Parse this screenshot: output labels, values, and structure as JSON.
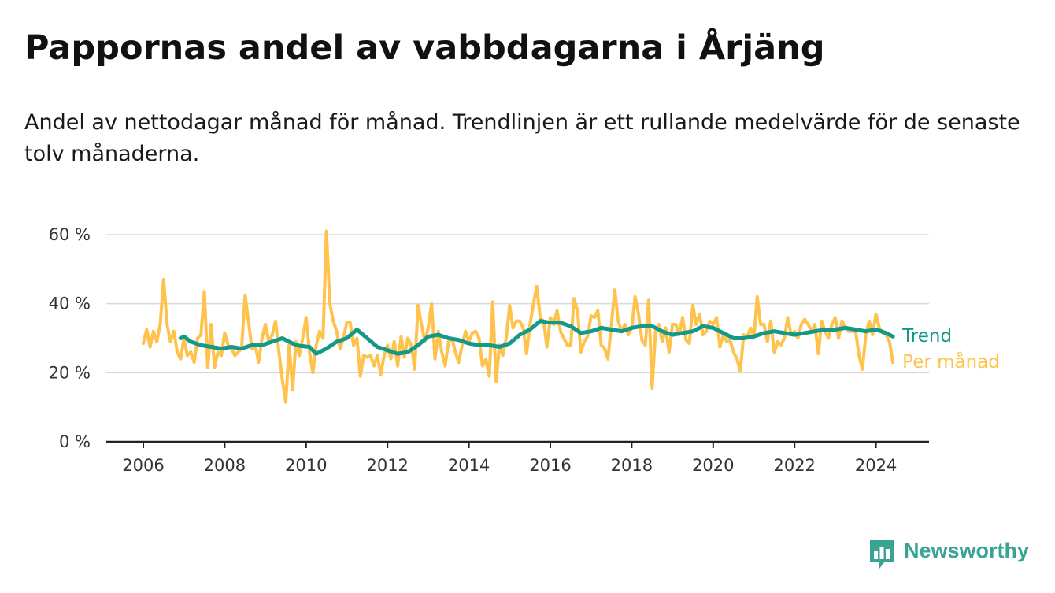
{
  "title": "Pappornas andel av vabbdagarna i Årjäng",
  "subtitle": "Andel av nettodagar månad för månad. Trendlinjen är ett rullande medelvärde för de senaste tolv månaderna.",
  "brand": {
    "name": "Newsworthy",
    "color": "#3aa494",
    "icon": "bar-chart-speech-bubble-icon"
  },
  "chart_data": {
    "type": "line",
    "grid": true,
    "ylim": [
      0,
      60
    ],
    "xlim": [
      "2006-01",
      "2024-12"
    ],
    "y_ticks": [
      {
        "value": 0,
        "label": "0 %"
      },
      {
        "value": 20,
        "label": "20 %"
      },
      {
        "value": 40,
        "label": "40 %"
      },
      {
        "value": 60,
        "label": "60 %"
      }
    ],
    "x_ticks": [
      "2006",
      "2008",
      "2010",
      "2012",
      "2014",
      "2016",
      "2018",
      "2020",
      "2022",
      "2024"
    ],
    "series": [
      {
        "name": "Per månad",
        "color": "#ffc34d",
        "points": [
          [
            "2006-01",
            28.5
          ],
          [
            "2006-02",
            32.5
          ],
          [
            "2006-03",
            27.5
          ],
          [
            "2006-04",
            32
          ],
          [
            "2006-05",
            29
          ],
          [
            "2006-06",
            34
          ],
          [
            "2006-07",
            47
          ],
          [
            "2006-08",
            34
          ],
          [
            "2006-09",
            29
          ],
          [
            "2006-10",
            32
          ],
          [
            "2006-11",
            26
          ],
          [
            "2006-12",
            24
          ],
          [
            "2007-01",
            30
          ],
          [
            "2007-02",
            25
          ],
          [
            "2007-03",
            26
          ],
          [
            "2007-04",
            23
          ],
          [
            "2007-05",
            30
          ],
          [
            "2007-06",
            31
          ],
          [
            "2007-07",
            43.5
          ],
          [
            "2007-08",
            21.5
          ],
          [
            "2007-09",
            34
          ],
          [
            "2007-10",
            21.5
          ],
          [
            "2007-11",
            26
          ],
          [
            "2007-12",
            25
          ],
          [
            "2008-01",
            31.5
          ],
          [
            "2008-02",
            28
          ],
          [
            "2008-03",
            27
          ],
          [
            "2008-04",
            25
          ],
          [
            "2008-05",
            26
          ],
          [
            "2008-06",
            27
          ],
          [
            "2008-07",
            42.5
          ],
          [
            "2008-08",
            35
          ],
          [
            "2008-09",
            27
          ],
          [
            "2008-10",
            28
          ],
          [
            "2008-11",
            23
          ],
          [
            "2008-12",
            30
          ],
          [
            "2009-01",
            34
          ],
          [
            "2009-02",
            29
          ],
          [
            "2009-03",
            31
          ],
          [
            "2009-04",
            35
          ],
          [
            "2009-05",
            26
          ],
          [
            "2009-06",
            18
          ],
          [
            "2009-07",
            11.5
          ],
          [
            "2009-08",
            28
          ],
          [
            "2009-09",
            15
          ],
          [
            "2009-10",
            29
          ],
          [
            "2009-11",
            25
          ],
          [
            "2009-12",
            30
          ],
          [
            "2010-01",
            36
          ],
          [
            "2010-02",
            26
          ],
          [
            "2010-03",
            20
          ],
          [
            "2010-04",
            28
          ],
          [
            "2010-05",
            32
          ],
          [
            "2010-06",
            30
          ],
          [
            "2010-07",
            61
          ],
          [
            "2010-08",
            40
          ],
          [
            "2010-09",
            35
          ],
          [
            "2010-10",
            32
          ],
          [
            "2010-11",
            27
          ],
          [
            "2010-12",
            30
          ],
          [
            "2011-01",
            34.5
          ],
          [
            "2011-02",
            34.5
          ],
          [
            "2011-03",
            28
          ],
          [
            "2011-04",
            30
          ],
          [
            "2011-05",
            19
          ],
          [
            "2011-06",
            25
          ],
          [
            "2011-07",
            24.5
          ],
          [
            "2011-08",
            25
          ],
          [
            "2011-09",
            22
          ],
          [
            "2011-10",
            25
          ],
          [
            "2011-11",
            19.5
          ],
          [
            "2011-12",
            25
          ],
          [
            "2012-01",
            28
          ],
          [
            "2012-02",
            24
          ],
          [
            "2012-03",
            29
          ],
          [
            "2012-04",
            22
          ],
          [
            "2012-05",
            30.5
          ],
          [
            "2012-06",
            24.5
          ],
          [
            "2012-07",
            30
          ],
          [
            "2012-08",
            28
          ],
          [
            "2012-09",
            21
          ],
          [
            "2012-10",
            39.5
          ],
          [
            "2012-11",
            34
          ],
          [
            "2012-12",
            29
          ],
          [
            "2013-01",
            33
          ],
          [
            "2013-02",
            40
          ],
          [
            "2013-03",
            24
          ],
          [
            "2013-04",
            32
          ],
          [
            "2013-05",
            26
          ],
          [
            "2013-06",
            22
          ],
          [
            "2013-07",
            29
          ],
          [
            "2013-08",
            30
          ],
          [
            "2013-09",
            26
          ],
          [
            "2013-10",
            23
          ],
          [
            "2013-11",
            28
          ],
          [
            "2013-12",
            32
          ],
          [
            "2014-01",
            29
          ],
          [
            "2014-02",
            31.5
          ],
          [
            "2014-03",
            32
          ],
          [
            "2014-04",
            30
          ],
          [
            "2014-05",
            22
          ],
          [
            "2014-06",
            24
          ],
          [
            "2014-07",
            19
          ],
          [
            "2014-08",
            40.5
          ],
          [
            "2014-09",
            17.5
          ],
          [
            "2014-10",
            28
          ],
          [
            "2014-11",
            25
          ],
          [
            "2014-12",
            30
          ],
          [
            "2015-01",
            39.5
          ],
          [
            "2015-02",
            33
          ],
          [
            "2015-03",
            35
          ],
          [
            "2015-04",
            35
          ],
          [
            "2015-05",
            33
          ],
          [
            "2015-06",
            25.5
          ],
          [
            "2015-07",
            34
          ],
          [
            "2015-08",
            40
          ],
          [
            "2015-09",
            45
          ],
          [
            "2015-10",
            36
          ],
          [
            "2015-11",
            35
          ],
          [
            "2015-12",
            27.5
          ],
          [
            "2016-01",
            36
          ],
          [
            "2016-02",
            34
          ],
          [
            "2016-03",
            38
          ],
          [
            "2016-04",
            32
          ],
          [
            "2016-05",
            30
          ],
          [
            "2016-06",
            28
          ],
          [
            "2016-07",
            28
          ],
          [
            "2016-08",
            41.5
          ],
          [
            "2016-09",
            38
          ],
          [
            "2016-10",
            26
          ],
          [
            "2016-11",
            29
          ],
          [
            "2016-12",
            30.5
          ],
          [
            "2017-01",
            36.5
          ],
          [
            "2017-02",
            36
          ],
          [
            "2017-03",
            38
          ],
          [
            "2017-04",
            28
          ],
          [
            "2017-05",
            27
          ],
          [
            "2017-06",
            24
          ],
          [
            "2017-07",
            34
          ],
          [
            "2017-08",
            44
          ],
          [
            "2017-09",
            35
          ],
          [
            "2017-10",
            32
          ],
          [
            "2017-11",
            34
          ],
          [
            "2017-12",
            31
          ],
          [
            "2018-01",
            33
          ],
          [
            "2018-02",
            42
          ],
          [
            "2018-03",
            37
          ],
          [
            "2018-04",
            29.5
          ],
          [
            "2018-05",
            28
          ],
          [
            "2018-06",
            41
          ],
          [
            "2018-07",
            15.5
          ],
          [
            "2018-08",
            32
          ],
          [
            "2018-09",
            34
          ],
          [
            "2018-10",
            29
          ],
          [
            "2018-11",
            33
          ],
          [
            "2018-12",
            26
          ],
          [
            "2019-01",
            34
          ],
          [
            "2019-02",
            34
          ],
          [
            "2019-03",
            31
          ],
          [
            "2019-04",
            36
          ],
          [
            "2019-05",
            29.5
          ],
          [
            "2019-06",
            28.5
          ],
          [
            "2019-07",
            39.5
          ],
          [
            "2019-08",
            34
          ],
          [
            "2019-09",
            37
          ],
          [
            "2019-10",
            31
          ],
          [
            "2019-11",
            32
          ],
          [
            "2019-12",
            35
          ],
          [
            "2020-01",
            34
          ],
          [
            "2020-02",
            36
          ],
          [
            "2020-03",
            27.5
          ],
          [
            "2020-04",
            31
          ],
          [
            "2020-05",
            29
          ],
          [
            "2020-06",
            29.5
          ],
          [
            "2020-07",
            26
          ],
          [
            "2020-08",
            24
          ],
          [
            "2020-09",
            20.5
          ],
          [
            "2020-10",
            31
          ],
          [
            "2020-11",
            30
          ],
          [
            "2020-12",
            33
          ],
          [
            "2021-01",
            30
          ],
          [
            "2021-02",
            42
          ],
          [
            "2021-03",
            34
          ],
          [
            "2021-04",
            34
          ],
          [
            "2021-05",
            29
          ],
          [
            "2021-06",
            35
          ],
          [
            "2021-07",
            26
          ],
          [
            "2021-08",
            29
          ],
          [
            "2021-09",
            28
          ],
          [
            "2021-10",
            30
          ],
          [
            "2021-11",
            36
          ],
          [
            "2021-12",
            31
          ],
          [
            "2022-01",
            32
          ],
          [
            "2022-02",
            30
          ],
          [
            "2022-03",
            34
          ],
          [
            "2022-04",
            35.5
          ],
          [
            "2022-05",
            34
          ],
          [
            "2022-06",
            32
          ],
          [
            "2022-07",
            34
          ],
          [
            "2022-08",
            25.5
          ],
          [
            "2022-09",
            35
          ],
          [
            "2022-10",
            32
          ],
          [
            "2022-11",
            30
          ],
          [
            "2022-12",
            34
          ],
          [
            "2023-01",
            36
          ],
          [
            "2023-02",
            30
          ],
          [
            "2023-03",
            35
          ],
          [
            "2023-04",
            33
          ],
          [
            "2023-05",
            32
          ],
          [
            "2023-06",
            32
          ],
          [
            "2023-07",
            32
          ],
          [
            "2023-08",
            25
          ],
          [
            "2023-09",
            21
          ],
          [
            "2023-10",
            31
          ],
          [
            "2023-11",
            35
          ],
          [
            "2023-12",
            31
          ],
          [
            "2024-01",
            37
          ],
          [
            "2024-02",
            33
          ],
          [
            "2024-03",
            31.5
          ],
          [
            "2024-04",
            31
          ],
          [
            "2024-05",
            29
          ],
          [
            "2024-06",
            23
          ]
        ]
      },
      {
        "name": "Trend",
        "color": "#12998a",
        "points": [
          [
            "2006-12",
            30
          ],
          [
            "2007-01",
            30.5
          ],
          [
            "2007-03",
            29
          ],
          [
            "2007-06",
            28
          ],
          [
            "2007-09",
            27.5
          ],
          [
            "2007-12",
            27
          ],
          [
            "2008-03",
            27.5
          ],
          [
            "2008-06",
            27
          ],
          [
            "2008-09",
            28
          ],
          [
            "2008-12",
            28
          ],
          [
            "2009-03",
            29
          ],
          [
            "2009-06",
            30
          ],
          [
            "2009-09",
            28.5
          ],
          [
            "2009-11",
            27.8
          ],
          [
            "2010-02",
            27.5
          ],
          [
            "2010-04",
            25.5
          ],
          [
            "2010-07",
            27
          ],
          [
            "2010-10",
            29
          ],
          [
            "2011-01",
            30
          ],
          [
            "2011-04",
            32.5
          ],
          [
            "2011-07",
            30
          ],
          [
            "2011-10",
            27.5
          ],
          [
            "2012-01",
            26.5
          ],
          [
            "2012-04",
            25.5
          ],
          [
            "2012-07",
            26
          ],
          [
            "2012-10",
            28
          ],
          [
            "2013-01",
            30.5
          ],
          [
            "2013-04",
            31
          ],
          [
            "2013-07",
            30
          ],
          [
            "2013-10",
            29.5
          ],
          [
            "2014-01",
            28.5
          ],
          [
            "2014-04",
            28
          ],
          [
            "2014-07",
            28
          ],
          [
            "2014-10",
            27.5
          ],
          [
            "2015-01",
            28.5
          ],
          [
            "2015-04",
            31
          ],
          [
            "2015-07",
            32.5
          ],
          [
            "2015-10",
            35
          ],
          [
            "2016-01",
            34.5
          ],
          [
            "2016-04",
            34.5
          ],
          [
            "2016-07",
            33.5
          ],
          [
            "2016-10",
            31.5
          ],
          [
            "2017-01",
            32
          ],
          [
            "2017-04",
            33
          ],
          [
            "2017-07",
            32.5
          ],
          [
            "2017-10",
            32
          ],
          [
            "2018-01",
            33
          ],
          [
            "2018-04",
            33.5
          ],
          [
            "2018-07",
            33.5
          ],
          [
            "2018-10",
            32
          ],
          [
            "2019-01",
            31
          ],
          [
            "2019-04",
            31.5
          ],
          [
            "2019-07",
            32
          ],
          [
            "2019-10",
            33.5
          ],
          [
            "2020-01",
            33
          ],
          [
            "2020-04",
            31.5
          ],
          [
            "2020-07",
            30
          ],
          [
            "2020-10",
            30
          ],
          [
            "2021-01",
            30.5
          ],
          [
            "2021-04",
            31.5
          ],
          [
            "2021-07",
            32
          ],
          [
            "2021-10",
            31.5
          ],
          [
            "2022-01",
            31
          ],
          [
            "2022-04",
            31.5
          ],
          [
            "2022-07",
            32
          ],
          [
            "2022-10",
            32.5
          ],
          [
            "2023-01",
            32.5
          ],
          [
            "2023-04",
            33
          ],
          [
            "2023-07",
            32.5
          ],
          [
            "2023-10",
            32
          ],
          [
            "2024-01",
            32.5
          ],
          [
            "2024-04",
            31.5
          ],
          [
            "2024-06",
            30.5
          ]
        ]
      }
    ]
  }
}
